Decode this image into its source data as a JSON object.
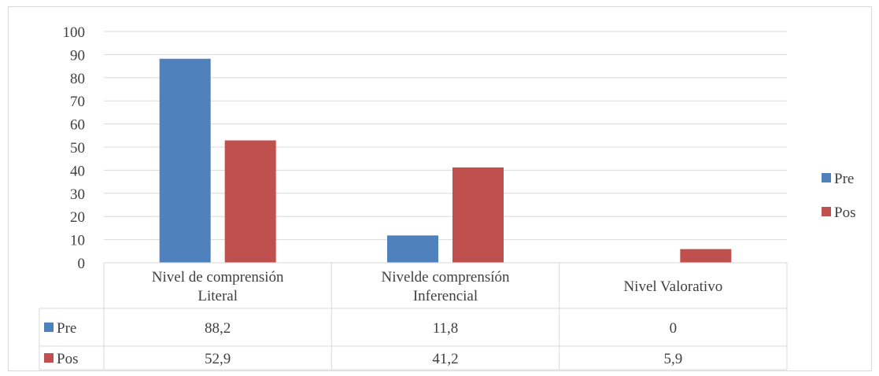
{
  "chart_data": {
    "type": "bar",
    "categories": [
      [
        "Nivel de comprensión",
        "Literal"
      ],
      [
        "Nivelde comprensíón",
        "Inferencial"
      ],
      [
        "Nivel Valorativo"
      ]
    ],
    "series": [
      {
        "name": "Pre",
        "values": [
          88.2,
          11.8,
          0
        ],
        "labels": [
          "88,2",
          "11,8",
          "0"
        ],
        "color": "#4f81bd"
      },
      {
        "name": "Pos",
        "values": [
          52.9,
          41.2,
          5.9
        ],
        "labels": [
          "52,9",
          "41,2",
          "5,9"
        ],
        "color": "#c0504d"
      }
    ],
    "y_ticks": [
      "0",
      "10",
      "20",
      "30",
      "40",
      "50",
      "60",
      "70",
      "80",
      "90",
      "100"
    ],
    "ylim": [
      0,
      100
    ],
    "grid": true,
    "legend_position": "right",
    "data_table": true,
    "title": "",
    "xlabel": "",
    "ylabel": ""
  },
  "colors": {
    "grid": "#d9d9d9",
    "text": "#404040"
  }
}
